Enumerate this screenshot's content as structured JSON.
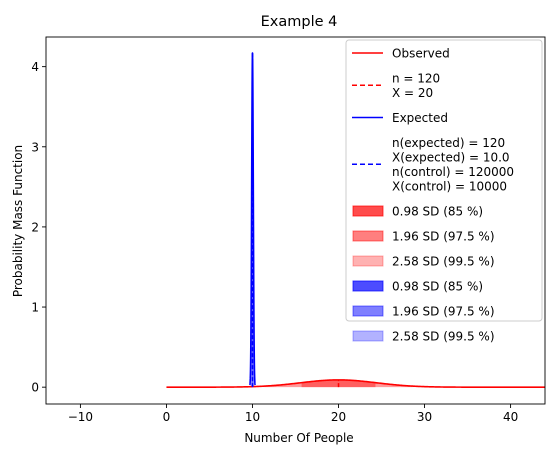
{
  "chart_data": {
    "type": "line",
    "title": "Example 4",
    "xlabel": "Number Of People",
    "ylabel": "Probability Mass Function",
    "xlim": [
      -14,
      44
    ],
    "ylim": [
      -0.21,
      4.37
    ],
    "xticks": [
      -10,
      0,
      10,
      20,
      30,
      40
    ],
    "yticks": [
      0,
      1,
      2,
      3,
      4
    ],
    "grid": false,
    "legend_position": "top-right",
    "series": [
      {
        "name": "Observed",
        "color": "#ff0000",
        "style": "solid",
        "distribution": {
          "mean": 20,
          "sd": 4.38,
          "peak": 0.091,
          "x_start": 0,
          "x_end": 44
        },
        "marker_x": 20
      },
      {
        "name": "Expected",
        "color": "#0000ff",
        "style": "solid",
        "distribution": {
          "mean": 10,
          "sd": 0.095,
          "peak": 4.17,
          "x_start": 9.7,
          "x_end": 10.3
        },
        "marker_x": 10
      }
    ],
    "bands": [
      {
        "label": "0.98 SD (85 %)",
        "color": "#ff0000",
        "alpha": 0.7,
        "series": "Observed",
        "k": 0.98
      },
      {
        "label": "1.96 SD (97.5 %)",
        "color": "#ff0000",
        "alpha": 0.5,
        "series": "Observed",
        "k": 1.96
      },
      {
        "label": "2.58 SD (99.5 %)",
        "color": "#ff0000",
        "alpha": 0.3,
        "series": "Observed",
        "k": 2.58
      },
      {
        "label": "0.98 SD (85 %)",
        "color": "#0000ff",
        "alpha": 0.7,
        "series": "Expected",
        "k": 0.98
      },
      {
        "label": "1.96 SD (97.5 %)",
        "color": "#0000ff",
        "alpha": 0.5,
        "series": "Expected",
        "k": 1.96
      },
      {
        "label": "2.58 SD (99.5 %)",
        "color": "#0000ff",
        "alpha": 0.3,
        "series": "Expected",
        "k": 2.58
      }
    ],
    "legend": [
      {
        "kind": "line",
        "style": "solid",
        "color": "#ff0000",
        "lines": [
          "Observed"
        ]
      },
      {
        "kind": "line",
        "style": "dashed",
        "color": "#ff0000",
        "lines": [
          "n = 120",
          "X = 20"
        ]
      },
      {
        "kind": "line",
        "style": "solid",
        "color": "#0000ff",
        "lines": [
          "Expected"
        ]
      },
      {
        "kind": "line",
        "style": "dashed",
        "color": "#0000ff",
        "lines": [
          "n(expected) = 120",
          "X(expected) = 10.0",
          "n(control) = 120000",
          "X(control) = 10000"
        ]
      },
      {
        "kind": "patch",
        "color": "#ff0000",
        "alpha": 0.7,
        "lines": [
          "0.98 SD (85 %)"
        ]
      },
      {
        "kind": "patch",
        "color": "#ff0000",
        "alpha": 0.5,
        "lines": [
          "1.96 SD (97.5 %)"
        ]
      },
      {
        "kind": "patch",
        "color": "#ff0000",
        "alpha": 0.3,
        "lines": [
          "2.58 SD (99.5 %)"
        ]
      },
      {
        "kind": "patch",
        "color": "#0000ff",
        "alpha": 0.7,
        "lines": [
          "0.98 SD (85 %)"
        ]
      },
      {
        "kind": "patch",
        "color": "#0000ff",
        "alpha": 0.5,
        "lines": [
          "1.96 SD (97.5 %)"
        ]
      },
      {
        "kind": "patch",
        "color": "#0000ff",
        "alpha": 0.3,
        "lines": [
          "2.58 SD (99.5 %)"
        ]
      }
    ]
  }
}
